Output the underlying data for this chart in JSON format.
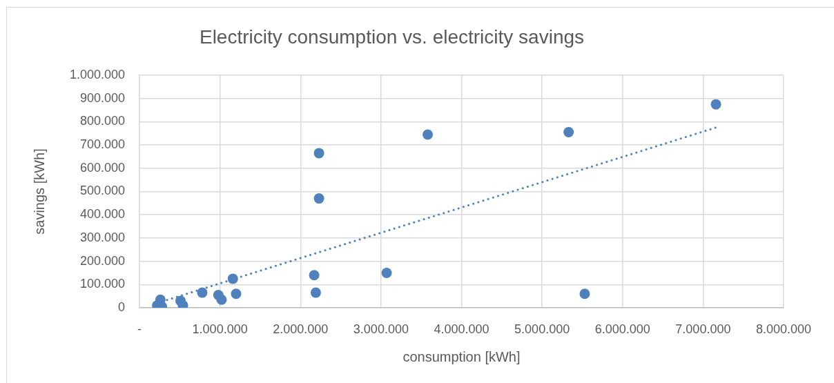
{
  "chart_data": {
    "type": "scatter",
    "title": "Electricity consumption vs. electricity savings",
    "xlabel": "consumption [kWh]",
    "ylabel": "savings [kWh]",
    "series": [
      {
        "type": "scatter",
        "color": "#4f81bd",
        "x": [
          220000,
          260000,
          280000,
          510000,
          540000,
          780000,
          980000,
          1020000,
          1160000,
          1200000,
          2170000,
          2190000,
          2230000,
          2230000,
          3070000,
          3580000,
          5330000,
          5530000,
          7160000
        ],
        "values": [
          10000,
          35000,
          5000,
          30000,
          10000,
          65000,
          55000,
          35000,
          125000,
          60000,
          140000,
          65000,
          665000,
          470000,
          150000,
          745000,
          755000,
          60000,
          875000
        ]
      },
      {
        "type": "line",
        "color": "#4f81bd",
        "x": [
          220000,
          7160000
        ],
        "values": [
          20000,
          775000
        ],
        "line_style": "dotted",
        "marker": "none"
      }
    ],
    "xlim": [
      0,
      8000000
    ],
    "xticks": [
      {
        "value": 0,
        "label": "-"
      },
      {
        "value": 1000000,
        "label": "1.000.000"
      },
      {
        "value": 2000000,
        "label": "2.000.000"
      },
      {
        "value": 3000000,
        "label": "3.000.000"
      },
      {
        "value": 4000000,
        "label": "4.000.000"
      },
      {
        "value": 5000000,
        "label": "5.000.000"
      },
      {
        "value": 6000000,
        "label": "6.000.000"
      },
      {
        "value": 7000000,
        "label": "7.000.000"
      },
      {
        "value": 8000000,
        "label": "8.000.000"
      }
    ],
    "ylim": [
      0,
      1000000
    ],
    "yticks": [
      0,
      {
        "value": 100000,
        "label": "100.000"
      },
      {
        "value": 200000,
        "label": "200.000"
      },
      {
        "value": 300000,
        "label": "300.000"
      },
      {
        "value": 400000,
        "label": "400.000"
      },
      {
        "value": 500000,
        "label": "500.000"
      },
      {
        "value": 600000,
        "label": "600.000"
      },
      {
        "value": 700000,
        "label": "700.000"
      },
      {
        "value": 800000,
        "label": "800.000"
      },
      {
        "value": 900000,
        "label": "900.000"
      },
      {
        "value": 1000000,
        "label": "1.000.000"
      }
    ],
    "grid": true,
    "marker": "circle"
  }
}
